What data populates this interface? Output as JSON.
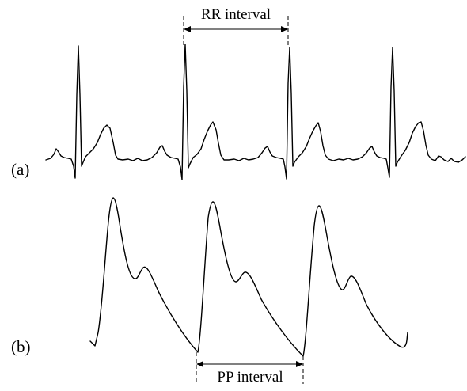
{
  "labels": {
    "panel_a": "(a)",
    "panel_b": "(b)",
    "rr_interval": "RR  interval",
    "pp_interval": "PP interval"
  },
  "colors": {
    "trace": "#000000",
    "background": "#ffffff"
  }
}
